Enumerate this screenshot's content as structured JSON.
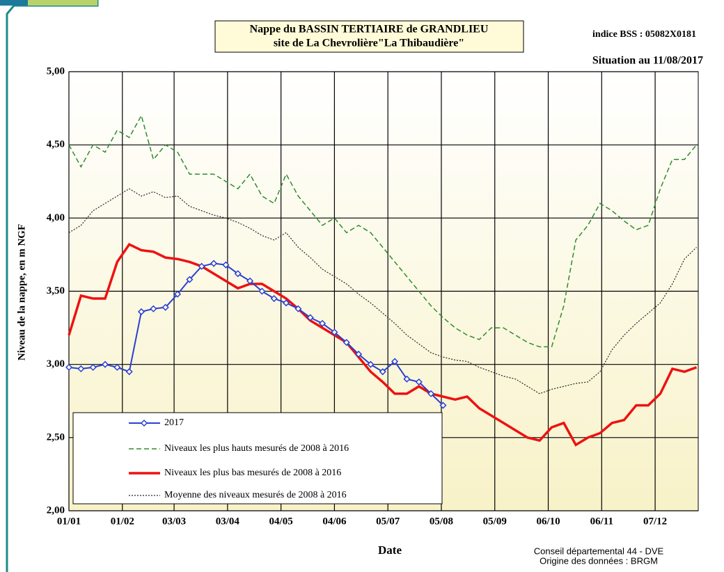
{
  "chart_data": {
    "type": "line",
    "title": [
      "Nappe du BASSIN TERTIAIRE de GRANDLIEU",
      "site de La Chevrolière\"La Thibaudière\""
    ],
    "annotations": [
      "indice BSS : 05082X0181",
      "Situation au 11/08/2017"
    ],
    "credits": [
      "Conseil départemental 44 - DVE",
      "Origine des données : BRGM"
    ],
    "x_label": "Date",
    "y_label": "Niveau de la nappe, en m NGF",
    "x": [
      0,
      7,
      14,
      21,
      28,
      35,
      42,
      49,
      56,
      63,
      70,
      77,
      84,
      91,
      98,
      105,
      112,
      119,
      126,
      133,
      140,
      147,
      154,
      161,
      168,
      175,
      182,
      189,
      196,
      203,
      210,
      217,
      224,
      231,
      238,
      245,
      252,
      259,
      266,
      273,
      280,
      287,
      294,
      301,
      308,
      315,
      322,
      329,
      336,
      343,
      350,
      357,
      364
    ],
    "xlim": [
      0,
      365
    ],
    "xticks": [
      {
        "value": 0,
        "label": "01/01"
      },
      {
        "value": 31,
        "label": "01/02"
      },
      {
        "value": 61,
        "label": "03/03"
      },
      {
        "value": 92,
        "label": "03/04"
      },
      {
        "value": 123,
        "label": "04/05"
      },
      {
        "value": 154,
        "label": "04/06"
      },
      {
        "value": 185,
        "label": "05/07"
      },
      {
        "value": 216,
        "label": "05/08"
      },
      {
        "value": 247,
        "label": "05/09"
      },
      {
        "value": 278,
        "label": "06/10"
      },
      {
        "value": 309,
        "label": "06/11"
      },
      {
        "value": 340,
        "label": "07/12"
      }
    ],
    "ylim": [
      2,
      5
    ],
    "yticks": [
      {
        "value": 2,
        "label": "2,00"
      },
      {
        "value": 2.5,
        "label": "2,50"
      },
      {
        "value": 3,
        "label": "3,00"
      },
      {
        "value": 3.5,
        "label": "3,50"
      },
      {
        "value": 4,
        "label": "4,00"
      },
      {
        "value": 4.5,
        "label": "4,50"
      },
      {
        "value": 5,
        "label": "5,00"
      }
    ],
    "grid": true,
    "series": [
      {
        "name": "2017",
        "color": "#2a3fd0",
        "style": "solid",
        "marker": "diamond",
        "values": [
          2.98,
          2.97,
          2.98,
          3.0,
          2.98,
          2.95,
          3.36,
          3.38,
          3.39,
          3.48,
          3.58,
          3.67,
          3.69,
          3.68,
          3.62,
          3.57,
          3.5,
          3.45,
          3.42,
          3.38,
          3.32,
          3.28,
          3.22,
          3.15,
          3.07,
          3.0,
          2.95,
          3.02,
          2.9,
          2.88,
          2.8,
          2.72,
          null,
          null,
          null,
          null,
          null,
          null,
          null,
          null,
          null,
          null,
          null,
          null,
          null,
          null,
          null,
          null,
          null,
          null,
          null,
          null,
          null
        ]
      },
      {
        "name": "Niveaux les plus hauts mesurés de 2008 à 2016",
        "color": "#2e8b2e",
        "style": "dashed",
        "values": [
          4.5,
          4.35,
          4.5,
          4.45,
          4.6,
          4.55,
          4.7,
          4.4,
          4.5,
          4.45,
          4.3,
          4.3,
          4.3,
          4.25,
          4.2,
          4.3,
          4.15,
          4.1,
          4.3,
          4.15,
          4.05,
          3.95,
          4.0,
          3.9,
          3.95,
          3.9,
          3.8,
          3.7,
          3.6,
          3.5,
          3.4,
          3.32,
          3.25,
          3.2,
          3.17,
          3.25,
          3.25,
          3.2,
          3.15,
          3.12,
          3.12,
          3.4,
          3.85,
          3.95,
          4.1,
          4.05,
          3.98,
          3.92,
          3.95,
          4.2,
          4.4,
          4.4,
          4.5
        ]
      },
      {
        "name": "Niveaux les plus bas mesurés de 2008 à 2016",
        "color": "#ee1111",
        "style": "thick",
        "values": [
          3.2,
          3.47,
          3.45,
          3.45,
          3.7,
          3.82,
          3.78,
          3.77,
          3.73,
          3.72,
          3.7,
          3.67,
          3.62,
          3.57,
          3.52,
          3.55,
          3.55,
          3.5,
          3.45,
          3.38,
          3.3,
          3.25,
          3.2,
          3.15,
          3.05,
          2.95,
          2.88,
          2.8,
          2.8,
          2.85,
          2.8,
          2.78,
          2.76,
          2.78,
          2.7,
          2.65,
          2.6,
          2.55,
          2.5,
          2.48,
          2.57,
          2.6,
          2.45,
          2.5,
          2.53,
          2.6,
          2.62,
          2.72,
          2.72,
          2.8,
          2.97,
          2.95,
          2.98
        ]
      },
      {
        "name": "Moyenne des niveaux mesurés de 2008 à 2016",
        "color": "#222222",
        "style": "dotted",
        "values": [
          3.9,
          3.95,
          4.05,
          4.1,
          4.15,
          4.2,
          4.15,
          4.18,
          4.14,
          4.15,
          4.08,
          4.05,
          4.02,
          4.0,
          3.97,
          3.93,
          3.88,
          3.85,
          3.9,
          3.8,
          3.73,
          3.65,
          3.6,
          3.55,
          3.48,
          3.42,
          3.35,
          3.28,
          3.2,
          3.14,
          3.08,
          3.05,
          3.03,
          3.02,
          2.98,
          2.95,
          2.92,
          2.9,
          2.85,
          2.8,
          2.83,
          2.85,
          2.87,
          2.88,
          2.95,
          3.1,
          3.2,
          3.28,
          3.35,
          3.42,
          3.55,
          3.72,
          3.8
        ]
      }
    ]
  }
}
